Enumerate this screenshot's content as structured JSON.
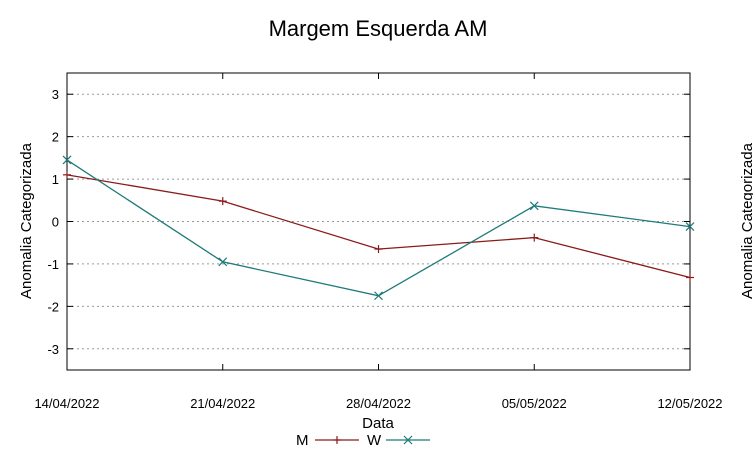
{
  "chart_data": {
    "type": "line",
    "title": "Margem Esquerda AM",
    "xlabel": "Data",
    "ylabel": "Anomalia Categorizada",
    "right_ylabel_partial": "Anomalia Categorizada",
    "x": [
      "14/04/2022",
      "21/04/2022",
      "28/04/2022",
      "05/05/2022",
      "12/05/2022"
    ],
    "x_tick_labels": [
      "14/04/2022",
      "21/04/2022",
      "28/04/2022",
      "05/05/2022",
      "12/05/2022"
    ],
    "ylim": [
      -3.5,
      3.5
    ],
    "y_ticks": [
      -3,
      -2,
      -1,
      0,
      1,
      2,
      3
    ],
    "grid": "horizontal-dotted",
    "legend_position": "bottom",
    "series": [
      {
        "name": "M",
        "color": "#8b1a1a",
        "marker": "plus",
        "values": [
          1.1,
          0.48,
          -0.65,
          -0.38,
          -1.32
        ]
      },
      {
        "name": "W",
        "color": "#1f7a7a",
        "marker": "cross",
        "values": [
          1.45,
          -0.95,
          -1.75,
          0.37,
          -0.12
        ]
      }
    ]
  }
}
